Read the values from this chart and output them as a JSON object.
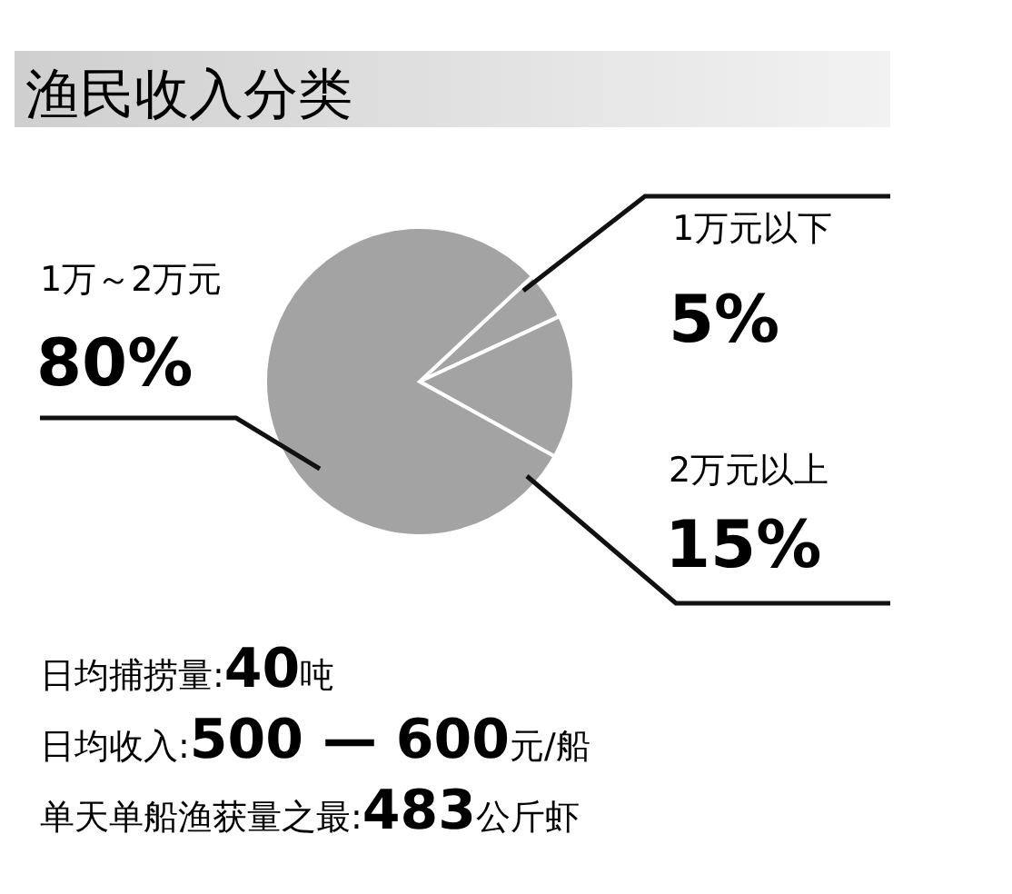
{
  "chart_data": {
    "type": "pie",
    "title": "渔民收入分类",
    "categories": [
      "1万元以下",
      "2万元以上",
      "1万～2万元"
    ],
    "values": [
      5,
      15,
      80
    ],
    "colors": [
      "#a3a3a3",
      "#a3a3a3",
      "#a3a3a3"
    ],
    "value_labels": [
      "5%",
      "15%",
      "80%"
    ],
    "annotations": [
      "日均捕捞量:40吨",
      "日均收入:500 — 600元/船",
      "单天单船渔获量之最:483公斤虾"
    ]
  }
}
